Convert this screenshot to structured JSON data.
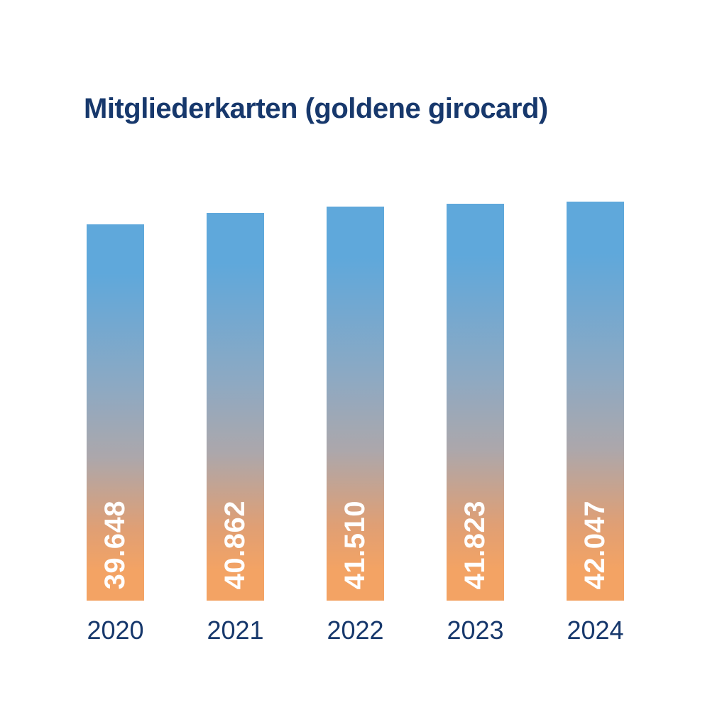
{
  "title": "Mitgliederkarten (goldene girocard)",
  "colors": {
    "background": "#FFFFFF",
    "title_text": "#17386C",
    "axis_text": "#17386C",
    "value_label_text": "#FFFFFF",
    "bar_gradient_top": "#5FA8DB",
    "bar_gradient_bottom": "#F3A364"
  },
  "chart_data": {
    "type": "bar",
    "title": "Mitgliederkarten (goldene girocard)",
    "categories": [
      "2020",
      "2021",
      "2022",
      "2023",
      "2024"
    ],
    "values": [
      39648,
      40862,
      41510,
      41823,
      42047
    ],
    "value_labels": [
      "39.648",
      "40.862",
      "41.510",
      "41.823",
      "42.047"
    ],
    "xlabel": "",
    "ylabel": "",
    "ylim": [
      0,
      42047
    ],
    "grid": false,
    "legend": false,
    "axes_visible": false,
    "value_label_style": "white bold, rotated 90° counterclockwise, inside bar near bottom",
    "bar_fill": "vertical gradient from blue (#5FA8DB) at top to orange (#F3A364) at bottom"
  }
}
